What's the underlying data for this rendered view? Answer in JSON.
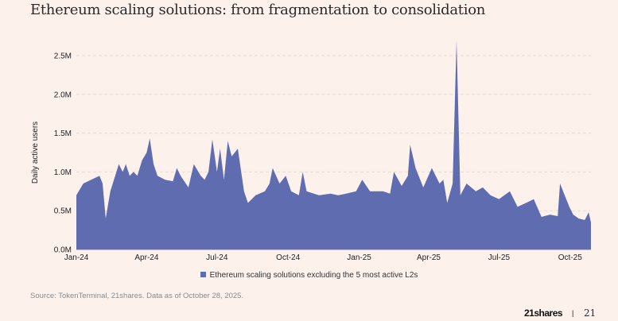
{
  "title": "Ethereum scaling solutions: from fragmentation to consolidation",
  "source": "Source: TokenTerminal, 21shares. Data as of October 28, 2025.",
  "footer": {
    "logo": "21shares",
    "separator": "|",
    "page_number": "21"
  },
  "colors": {
    "series": "#5f6db0",
    "background": "#fdf1ec",
    "grid": "#e6dcd6"
  },
  "chart_data": {
    "type": "area",
    "title": "Ethereum scaling solutions: from fragmentation to consolidation",
    "xlabel": "",
    "ylabel": "Daily active users",
    "ylim": [
      0,
      2700000
    ],
    "yticks": [
      0,
      500000,
      1000000,
      1500000,
      2000000,
      2500000
    ],
    "ytick_labels": [
      "0.0M",
      "0.5M",
      "1.0M",
      "1.5M",
      "2.0M",
      "2.5M"
    ],
    "xticks": [
      "2024-01-01",
      "2024-04-01",
      "2024-07-01",
      "2024-10-01",
      "2025-01-01",
      "2025-04-01",
      "2025-07-01",
      "2025-10-01"
    ],
    "xtick_labels": [
      "Jan-24",
      "Apr-24",
      "Jul-24",
      "Oct-24",
      "Jan-25",
      "Apr-25",
      "Jul-25",
      "Oct-25"
    ],
    "grid": "horizontal dashed",
    "legend_placement": "bottom",
    "series": [
      {
        "name": "Ethereum scaling solutions excluding the 5 most active L2s",
        "points": [
          [
            "2024-01-01",
            700000
          ],
          [
            "2024-01-10",
            850000
          ],
          [
            "2024-01-20",
            900000
          ],
          [
            "2024-01-31",
            950000
          ],
          [
            "2024-02-04",
            850000
          ],
          [
            "2024-02-08",
            400000
          ],
          [
            "2024-02-14",
            750000
          ],
          [
            "2024-02-25",
            1100000
          ],
          [
            "2024-03-01",
            1000000
          ],
          [
            "2024-03-05",
            1100000
          ],
          [
            "2024-03-10",
            950000
          ],
          [
            "2024-03-15",
            1000000
          ],
          [
            "2024-03-20",
            950000
          ],
          [
            "2024-03-26",
            1150000
          ],
          [
            "2024-04-01",
            1250000
          ],
          [
            "2024-04-05",
            1430000
          ],
          [
            "2024-04-10",
            1100000
          ],
          [
            "2024-04-15",
            950000
          ],
          [
            "2024-04-25",
            900000
          ],
          [
            "2024-05-05",
            880000
          ],
          [
            "2024-05-10",
            1050000
          ],
          [
            "2024-05-15",
            950000
          ],
          [
            "2024-05-25",
            800000
          ],
          [
            "2024-06-01",
            1100000
          ],
          [
            "2024-06-10",
            950000
          ],
          [
            "2024-06-15",
            900000
          ],
          [
            "2024-06-20",
            1000000
          ],
          [
            "2024-06-25",
            1420000
          ],
          [
            "2024-07-01",
            1000000
          ],
          [
            "2024-07-05",
            1300000
          ],
          [
            "2024-07-10",
            900000
          ],
          [
            "2024-07-15",
            1400000
          ],
          [
            "2024-07-20",
            1200000
          ],
          [
            "2024-07-28",
            1300000
          ],
          [
            "2024-08-05",
            750000
          ],
          [
            "2024-08-10",
            600000
          ],
          [
            "2024-08-20",
            700000
          ],
          [
            "2024-09-01",
            750000
          ],
          [
            "2024-09-07",
            850000
          ],
          [
            "2024-09-11",
            1050000
          ],
          [
            "2024-09-20",
            850000
          ],
          [
            "2024-09-28",
            950000
          ],
          [
            "2024-10-05",
            750000
          ],
          [
            "2024-10-15",
            700000
          ],
          [
            "2024-10-20",
            1000000
          ],
          [
            "2024-10-25",
            750000
          ],
          [
            "2024-11-10",
            700000
          ],
          [
            "2024-11-25",
            720000
          ],
          [
            "2024-12-05",
            700000
          ],
          [
            "2024-12-15",
            720000
          ],
          [
            "2024-12-28",
            750000
          ],
          [
            "2025-01-05",
            900000
          ],
          [
            "2025-01-15",
            750000
          ],
          [
            "2025-02-01",
            750000
          ],
          [
            "2025-02-10",
            720000
          ],
          [
            "2025-02-15",
            1000000
          ],
          [
            "2025-02-25",
            820000
          ],
          [
            "2025-03-05",
            950000
          ],
          [
            "2025-03-08",
            1350000
          ],
          [
            "2025-03-15",
            1050000
          ],
          [
            "2025-03-25",
            800000
          ],
          [
            "2025-04-05",
            1050000
          ],
          [
            "2025-04-15",
            850000
          ],
          [
            "2025-04-20",
            900000
          ],
          [
            "2025-04-25",
            600000
          ],
          [
            "2025-05-02",
            850000
          ],
          [
            "2025-05-07",
            2700000
          ],
          [
            "2025-05-12",
            700000
          ],
          [
            "2025-05-20",
            850000
          ],
          [
            "2025-06-01",
            750000
          ],
          [
            "2025-06-10",
            800000
          ],
          [
            "2025-06-20",
            700000
          ],
          [
            "2025-07-01",
            650000
          ],
          [
            "2025-07-15",
            750000
          ],
          [
            "2025-07-25",
            550000
          ],
          [
            "2025-08-05",
            600000
          ],
          [
            "2025-08-15",
            650000
          ],
          [
            "2025-08-25",
            420000
          ],
          [
            "2025-09-05",
            450000
          ],
          [
            "2025-09-15",
            430000
          ],
          [
            "2025-09-18",
            850000
          ],
          [
            "2025-09-30",
            550000
          ],
          [
            "2025-10-05",
            450000
          ],
          [
            "2025-10-12",
            400000
          ],
          [
            "2025-10-20",
            380000
          ],
          [
            "2025-10-25",
            480000
          ],
          [
            "2025-10-28",
            350000
          ]
        ]
      }
    ]
  }
}
